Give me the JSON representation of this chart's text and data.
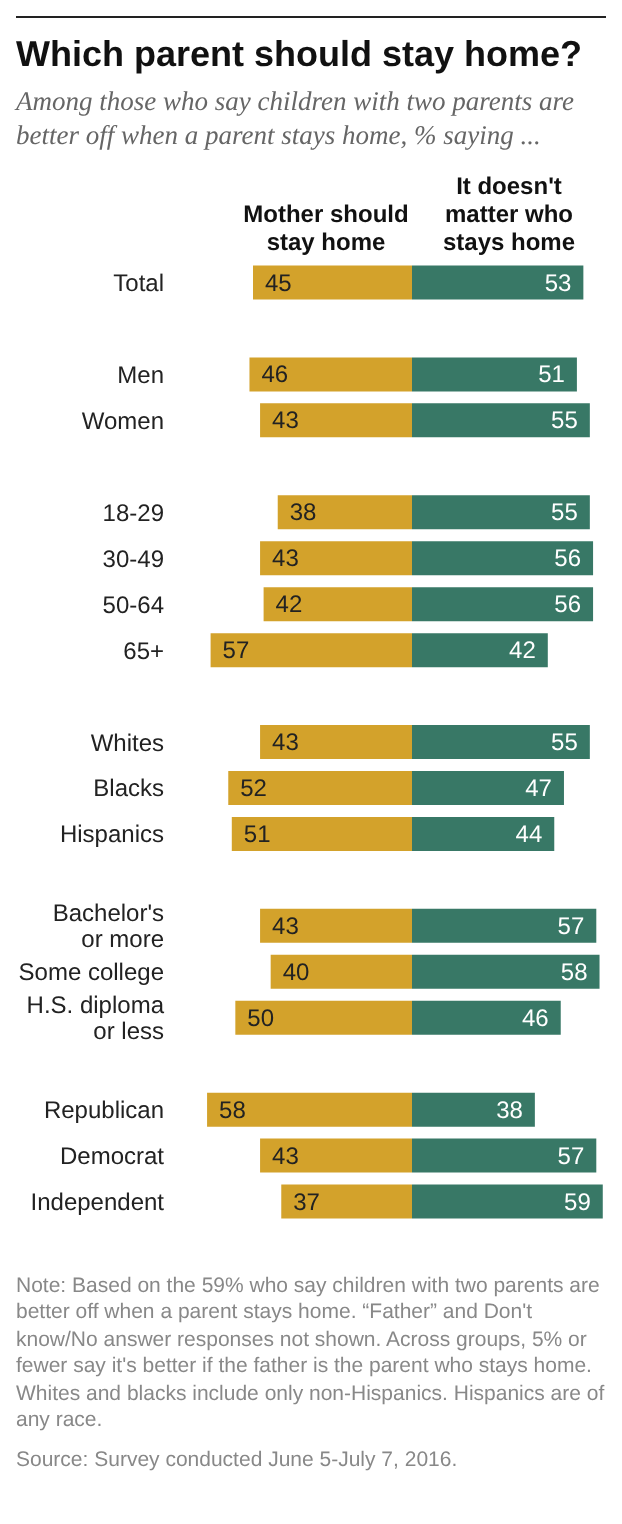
{
  "chart_data": [
    {
      "type": "bar",
      "orientation": "horizontal",
      "title": "Which parent should stay home?",
      "subtitle": "Among those who say children with two parents are better off when a parent stays home, % saying ...",
      "categories": [
        "Total",
        null,
        "Men",
        "Women",
        null,
        "18-29",
        "30-49",
        "50-64",
        "65+",
        null,
        "Whites",
        "Blacks",
        "Hispanics",
        null,
        "Bachelor's or more",
        "Some college",
        "H.S. diploma or less",
        null,
        "Republican",
        "Democrat",
        "Independent"
      ],
      "series": [
        {
          "name": "Mother should stay home",
          "color": "#d3a22b",
          "values": [
            45,
            null,
            46,
            43,
            null,
            38,
            43,
            42,
            57,
            null,
            43,
            52,
            51,
            null,
            43,
            40,
            50,
            null,
            58,
            43,
            37
          ]
        }
      ],
      "xlim": [
        60,
        0
      ],
      "data_labels": true,
      "annotations": [
        "Note: Based on the 59% who say children with two parents are better off when a parent stays home. “Father” and Don't know/No answer responses not shown. Across groups, 5% or fewer say it's better if the father is the parent who stays home. Whites and blacks include only non-Hispanics. Hispanics are of any race.",
        "Source: Survey conducted June 5-July 7, 2016."
      ]
    },
    {
      "type": "bar",
      "orientation": "horizontal",
      "categories": [
        null,
        null,
        null,
        null,
        null,
        null,
        null,
        null,
        null,
        null,
        null,
        null,
        null,
        null,
        null,
        null,
        null,
        null,
        null,
        null,
        null
      ],
      "series": [
        {
          "name": "It doesn't matter who stays home",
          "color": "#387866",
          "values": [
            53,
            null,
            51,
            55,
            null,
            55,
            56,
            56,
            42,
            null,
            55,
            47,
            44,
            null,
            57,
            58,
            46,
            null,
            38,
            57,
            59
          ]
        }
      ],
      "xlim": [
        0,
        60
      ],
      "data_labels": true,
      "tick_labels": false
    }
  ]
}
